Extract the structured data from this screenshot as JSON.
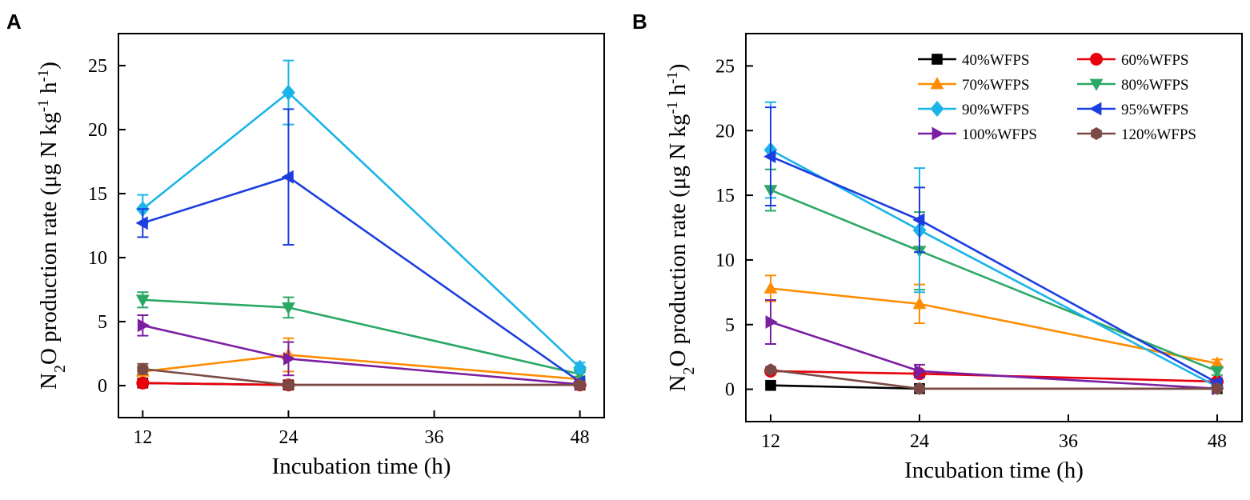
{
  "chart_data": [
    {
      "panel_label": "A",
      "type": "line",
      "xlabel": "Incubation time (h)",
      "ylabel": {
        "main": "N",
        "sub": "2",
        "rest": "O production rate (μg N kg",
        "sup1": "-1",
        "mid": " h",
        "sup2": "-1",
        "end": ")"
      },
      "xlim": [
        10,
        50
      ],
      "ylim": [
        -2.5,
        27.5
      ],
      "xticks": [
        12,
        24,
        36,
        48
      ],
      "yticks": [
        0,
        5,
        10,
        15,
        20,
        25
      ],
      "x": [
        12,
        24,
        48
      ],
      "legend": false,
      "series": [
        {
          "name": "40%WFPS",
          "color": "#000000",
          "marker": "square",
          "values": [
            0.2,
            0.05,
            0.05
          ],
          "err": [
            0.1,
            0.1,
            0.05
          ]
        },
        {
          "name": "60%WFPS",
          "color": "#e8000b",
          "marker": "circle",
          "values": [
            0.2,
            0.05,
            0.05
          ],
          "err": [
            0.1,
            0.1,
            0.05
          ]
        },
        {
          "name": "70%WFPS",
          "color": "#ff8c00",
          "marker": "triangle-up",
          "values": [
            1.1,
            2.4,
            0.5
          ],
          "err": [
            0.3,
            1.3,
            0.2
          ]
        },
        {
          "name": "80%WFPS",
          "color": "#2ca866",
          "marker": "triangle-down",
          "values": [
            6.7,
            6.1,
            0.9
          ],
          "err": [
            0.6,
            0.8,
            0.2
          ]
        },
        {
          "name": "90%WFPS",
          "color": "#1cb4e8",
          "marker": "diamond",
          "values": [
            13.8,
            22.9,
            1.4
          ],
          "err": [
            1.1,
            2.5,
            0.4
          ]
        },
        {
          "name": "95%WFPS",
          "color": "#1c3ee0",
          "marker": "triangle-left",
          "values": [
            12.7,
            16.3,
            0.3
          ],
          "err": [
            1.1,
            5.3,
            0.2
          ]
        },
        {
          "name": "100%WFPS",
          "color": "#7b1fa2",
          "marker": "triangle-right",
          "values": [
            4.7,
            2.1,
            0.1
          ],
          "err": [
            0.8,
            1.3,
            0.1
          ]
        },
        {
          "name": "120%WFPS",
          "color": "#7b4a44",
          "marker": "hexagon",
          "values": [
            1.3,
            0.05,
            0.05
          ],
          "err": [
            0.4,
            0.2,
            0.05
          ]
        }
      ]
    },
    {
      "panel_label": "B",
      "type": "line",
      "xlabel": "Incubation time (h)",
      "ylabel": {
        "main": "N",
        "sub": "2",
        "rest": "O production rate (μg N kg",
        "sup1": "-1",
        "mid": " h",
        "sup2": "-1",
        "end": ")"
      },
      "xlim": [
        10,
        50
      ],
      "ylim": [
        -2.5,
        27.5
      ],
      "xticks": [
        12,
        24,
        36,
        48
      ],
      "yticks": [
        0,
        5,
        10,
        15,
        20,
        25
      ],
      "x": [
        12,
        24,
        48
      ],
      "legend": true,
      "legend_position": "top-right",
      "series": [
        {
          "name": "40%WFPS",
          "color": "#000000",
          "marker": "square",
          "values": [
            0.3,
            0.05,
            0.05
          ],
          "err": [
            0.1,
            0.05,
            0.05
          ]
        },
        {
          "name": "60%WFPS",
          "color": "#e8000b",
          "marker": "circle",
          "values": [
            1.4,
            1.2,
            0.6
          ],
          "err": [
            0.2,
            0.2,
            0.1
          ]
        },
        {
          "name": "70%WFPS",
          "color": "#ff8c00",
          "marker": "triangle-up",
          "values": [
            7.8,
            6.6,
            2.0
          ],
          "err": [
            1.0,
            1.5,
            0.3
          ]
        },
        {
          "name": "80%WFPS",
          "color": "#2ca866",
          "marker": "triangle-down",
          "values": [
            15.4,
            10.7,
            1.4
          ],
          "err": [
            1.6,
            3.0,
            0.3
          ]
        },
        {
          "name": "90%WFPS",
          "color": "#1cb4e8",
          "marker": "diamond",
          "values": [
            18.5,
            12.3,
            0.2
          ],
          "err": [
            3.7,
            4.8,
            0.1
          ]
        },
        {
          "name": "95%WFPS",
          "color": "#1c3ee0",
          "marker": "triangle-left",
          "values": [
            18.0,
            13.1,
            0.5
          ],
          "err": [
            3.8,
            2.5,
            0.2
          ]
        },
        {
          "name": "100%WFPS",
          "color": "#7b1fa2",
          "marker": "triangle-right",
          "values": [
            5.2,
            1.4,
            0.05
          ],
          "err": [
            1.7,
            0.5,
            0.05
          ]
        },
        {
          "name": "120%WFPS",
          "color": "#7b4a44",
          "marker": "hexagon",
          "values": [
            1.5,
            0.05,
            0.05
          ],
          "err": [
            0.2,
            0.1,
            0.05
          ]
        }
      ]
    }
  ]
}
